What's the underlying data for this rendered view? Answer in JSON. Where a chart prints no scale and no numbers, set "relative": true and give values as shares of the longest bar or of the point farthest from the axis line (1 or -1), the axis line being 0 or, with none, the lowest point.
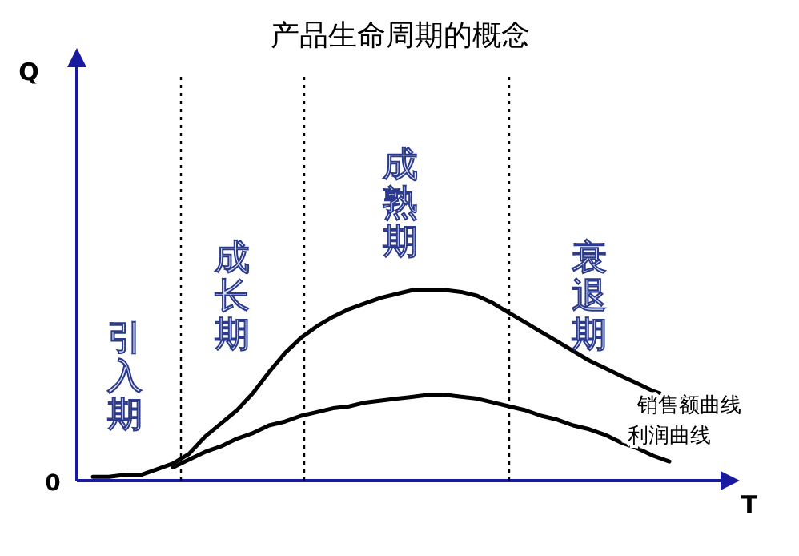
{
  "chart_data": {
    "type": "line",
    "title": "产品生命周期的概念",
    "xlabel": "T",
    "relative": true,
    "legend": false,
    "marker": "none",
    "line_style": "solid",
    "categories": [
      null,
      null,
      null,
      null,
      null,
      null,
      null,
      null,
      null,
      null,
      null,
      null,
      null,
      null,
      null,
      null,
      null,
      null,
      null,
      null,
      null,
      null,
      null,
      null,
      null,
      null,
      null,
      null,
      null,
      null,
      null,
      null,
      null,
      null,
      null,
      null,
      null
    ],
    "series": [
      {
        "name": "销售额曲线",
        "color": "#000000",
        "values": [
          0.02,
          0.02,
          0.03,
          0.03,
          0.06,
          0.09,
          0.14,
          0.23,
          0.3,
          0.37,
          0.46,
          0.57,
          0.67,
          0.75,
          0.81,
          0.86,
          0.9,
          0.93,
          0.96,
          0.98,
          1.0,
          1.0,
          1.0,
          0.99,
          0.97,
          0.93,
          0.88,
          0.83,
          0.78,
          0.73,
          0.68,
          0.63,
          0.59,
          0.55,
          0.51,
          0.47,
          0.44
        ]
      },
      {
        "name": "利润曲线",
        "color": "#000000",
        "values": [
          null,
          null,
          null,
          null,
          null,
          0.07,
          0.11,
          0.15,
          0.18,
          0.22,
          0.25,
          0.29,
          0.31,
          0.34,
          0.36,
          0.38,
          0.39,
          0.41,
          0.42,
          0.43,
          0.44,
          0.45,
          0.45,
          0.44,
          0.43,
          0.41,
          0.39,
          0.37,
          0.34,
          0.32,
          0.29,
          0.27,
          0.24,
          0.2,
          0.17,
          0.13,
          0.1
        ]
      }
    ],
    "annotations": [
      "0",
      "引入期",
      "成长期",
      "成熟期",
      "衰退期",
      "Q"
    ]
  }
}
